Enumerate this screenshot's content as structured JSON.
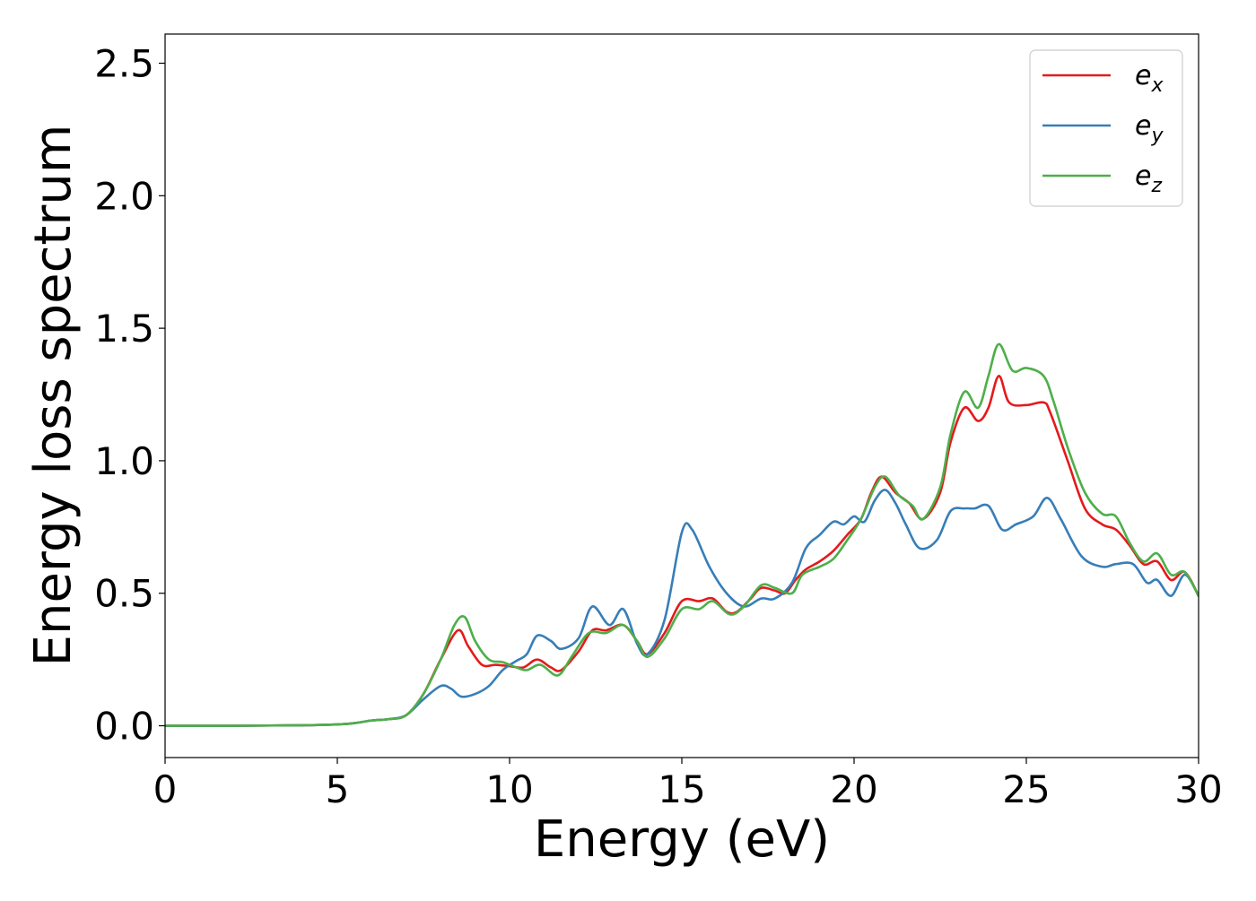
{
  "chart_data": {
    "type": "line",
    "title": "",
    "xlabel": "Energy (eV)",
    "ylabel": "Energy loss spectrum",
    "xlim": [
      0,
      30
    ],
    "ylim": [
      -0.12,
      2.61
    ],
    "xticks": [
      0,
      5,
      10,
      15,
      20,
      25,
      30
    ],
    "xtick_labels": [
      "0",
      "5",
      "10",
      "15",
      "20",
      "25",
      "30"
    ],
    "yticks": [
      0.0,
      0.5,
      1.0,
      1.5,
      2.0,
      2.5
    ],
    "ytick_labels": [
      "0.0",
      "0.5",
      "1.0",
      "1.5",
      "2.0",
      "2.5"
    ],
    "grid": false,
    "legend_position": "top-right",
    "series": [
      {
        "name": "e_x",
        "legend_base": "e",
        "legend_sub": "x",
        "color": "#e41a1c",
        "points": [
          [
            0,
            0
          ],
          [
            2,
            0
          ],
          [
            4,
            0.002
          ],
          [
            5,
            0.005
          ],
          [
            5.5,
            0.01
          ],
          [
            6,
            0.02
          ],
          [
            6.5,
            0.025
          ],
          [
            7,
            0.04
          ],
          [
            7.5,
            0.12
          ],
          [
            8,
            0.25
          ],
          [
            8.5,
            0.36
          ],
          [
            8.8,
            0.3
          ],
          [
            9.2,
            0.23
          ],
          [
            9.6,
            0.23
          ],
          [
            10,
            0.225
          ],
          [
            10.4,
            0.22
          ],
          [
            10.8,
            0.25
          ],
          [
            11.2,
            0.22
          ],
          [
            11.5,
            0.21
          ],
          [
            12,
            0.28
          ],
          [
            12.4,
            0.36
          ],
          [
            12.8,
            0.36
          ],
          [
            13.3,
            0.38
          ],
          [
            13.7,
            0.32
          ],
          [
            14,
            0.27
          ],
          [
            14.5,
            0.35
          ],
          [
            15,
            0.47
          ],
          [
            15.5,
            0.47
          ],
          [
            15.9,
            0.48
          ],
          [
            16.3,
            0.43
          ],
          [
            16.6,
            0.43
          ],
          [
            17,
            0.48
          ],
          [
            17.3,
            0.52
          ],
          [
            17.7,
            0.51
          ],
          [
            18,
            0.5
          ],
          [
            18.3,
            0.55
          ],
          [
            18.6,
            0.59
          ],
          [
            19,
            0.62
          ],
          [
            19.4,
            0.66
          ],
          [
            19.8,
            0.72
          ],
          [
            20.2,
            0.78
          ],
          [
            20.5,
            0.88
          ],
          [
            20.8,
            0.94
          ],
          [
            21.2,
            0.88
          ],
          [
            21.6,
            0.84
          ],
          [
            22,
            0.78
          ],
          [
            22.5,
            0.88
          ],
          [
            22.8,
            1.07
          ],
          [
            23.2,
            1.2
          ],
          [
            23.6,
            1.15
          ],
          [
            23.9,
            1.2
          ],
          [
            24.2,
            1.32
          ],
          [
            24.5,
            1.22
          ],
          [
            25,
            1.21
          ],
          [
            25.5,
            1.22
          ],
          [
            25.7,
            1.18
          ],
          [
            26.2,
            1.0
          ],
          [
            26.7,
            0.82
          ],
          [
            27.2,
            0.76
          ],
          [
            27.6,
            0.74
          ],
          [
            28,
            0.68
          ],
          [
            28.4,
            0.61
          ],
          [
            28.8,
            0.62
          ],
          [
            29.2,
            0.55
          ],
          [
            29.6,
            0.58
          ],
          [
            30,
            0.49
          ]
        ]
      },
      {
        "name": "e_y",
        "legend_base": "e",
        "legend_sub": "y",
        "color": "#377eb8",
        "points": [
          [
            0,
            0
          ],
          [
            2,
            0
          ],
          [
            4,
            0.002
          ],
          [
            5,
            0.005
          ],
          [
            5.5,
            0.01
          ],
          [
            6,
            0.02
          ],
          [
            6.5,
            0.025
          ],
          [
            7,
            0.04
          ],
          [
            7.5,
            0.1
          ],
          [
            8,
            0.15
          ],
          [
            8.3,
            0.14
          ],
          [
            8.6,
            0.11
          ],
          [
            9,
            0.12
          ],
          [
            9.4,
            0.15
          ],
          [
            9.8,
            0.21
          ],
          [
            10.2,
            0.245
          ],
          [
            10.5,
            0.27
          ],
          [
            10.8,
            0.34
          ],
          [
            11.2,
            0.32
          ],
          [
            11.5,
            0.29
          ],
          [
            12,
            0.33
          ],
          [
            12.4,
            0.45
          ],
          [
            12.9,
            0.38
          ],
          [
            13.3,
            0.44
          ],
          [
            13.7,
            0.31
          ],
          [
            14,
            0.27
          ],
          [
            14.5,
            0.4
          ],
          [
            15,
            0.73
          ],
          [
            15.3,
            0.74
          ],
          [
            15.8,
            0.6
          ],
          [
            16.3,
            0.5
          ],
          [
            16.8,
            0.45
          ],
          [
            17.3,
            0.48
          ],
          [
            17.7,
            0.48
          ],
          [
            18.2,
            0.54
          ],
          [
            18.6,
            0.67
          ],
          [
            19,
            0.72
          ],
          [
            19.4,
            0.77
          ],
          [
            19.7,
            0.76
          ],
          [
            20,
            0.79
          ],
          [
            20.3,
            0.77
          ],
          [
            20.6,
            0.85
          ],
          [
            20.9,
            0.89
          ],
          [
            21.2,
            0.84
          ],
          [
            21.5,
            0.76
          ],
          [
            21.9,
            0.67
          ],
          [
            22.4,
            0.7
          ],
          [
            22.8,
            0.81
          ],
          [
            23.2,
            0.82
          ],
          [
            23.5,
            0.82
          ],
          [
            23.9,
            0.83
          ],
          [
            24.3,
            0.74
          ],
          [
            24.7,
            0.76
          ],
          [
            25.2,
            0.79
          ],
          [
            25.6,
            0.86
          ],
          [
            26,
            0.78
          ],
          [
            26.6,
            0.64
          ],
          [
            27.2,
            0.6
          ],
          [
            27.6,
            0.61
          ],
          [
            28.1,
            0.61
          ],
          [
            28.5,
            0.54
          ],
          [
            28.8,
            0.55
          ],
          [
            29.2,
            0.49
          ],
          [
            29.6,
            0.57
          ],
          [
            30,
            0.49
          ]
        ]
      },
      {
        "name": "e_z",
        "legend_base": "e",
        "legend_sub": "z",
        "color": "#4daf4a",
        "points": [
          [
            0,
            0
          ],
          [
            2,
            0
          ],
          [
            4,
            0.002
          ],
          [
            5,
            0.005
          ],
          [
            5.5,
            0.01
          ],
          [
            6,
            0.02
          ],
          [
            6.5,
            0.025
          ],
          [
            7,
            0.04
          ],
          [
            7.5,
            0.12
          ],
          [
            8,
            0.25
          ],
          [
            8.4,
            0.38
          ],
          [
            8.7,
            0.41
          ],
          [
            9,
            0.32
          ],
          [
            9.4,
            0.25
          ],
          [
            9.8,
            0.24
          ],
          [
            10.2,
            0.22
          ],
          [
            10.5,
            0.21
          ],
          [
            10.9,
            0.23
          ],
          [
            11.4,
            0.19
          ],
          [
            11.8,
            0.26
          ],
          [
            12.3,
            0.35
          ],
          [
            12.8,
            0.35
          ],
          [
            13.3,
            0.38
          ],
          [
            13.7,
            0.32
          ],
          [
            14,
            0.26
          ],
          [
            14.5,
            0.33
          ],
          [
            15,
            0.44
          ],
          [
            15.5,
            0.44
          ],
          [
            15.9,
            0.47
          ],
          [
            16.4,
            0.42
          ],
          [
            16.8,
            0.45
          ],
          [
            17.3,
            0.53
          ],
          [
            17.7,
            0.52
          ],
          [
            18.2,
            0.5
          ],
          [
            18.5,
            0.57
          ],
          [
            19,
            0.6
          ],
          [
            19.4,
            0.63
          ],
          [
            19.8,
            0.7
          ],
          [
            20.2,
            0.78
          ],
          [
            20.6,
            0.9
          ],
          [
            20.9,
            0.94
          ],
          [
            21.3,
            0.87
          ],
          [
            21.7,
            0.83
          ],
          [
            22,
            0.78
          ],
          [
            22.5,
            0.9
          ],
          [
            22.8,
            1.1
          ],
          [
            23.2,
            1.26
          ],
          [
            23.6,
            1.2
          ],
          [
            23.9,
            1.32
          ],
          [
            24.2,
            1.44
          ],
          [
            24.6,
            1.34
          ],
          [
            25,
            1.35
          ],
          [
            25.5,
            1.32
          ],
          [
            25.8,
            1.22
          ],
          [
            26.2,
            1.05
          ],
          [
            26.7,
            0.88
          ],
          [
            27.2,
            0.8
          ],
          [
            27.6,
            0.79
          ],
          [
            28,
            0.69
          ],
          [
            28.4,
            0.62
          ],
          [
            28.8,
            0.65
          ],
          [
            29.2,
            0.57
          ],
          [
            29.6,
            0.58
          ],
          [
            30,
            0.49
          ]
        ]
      }
    ]
  }
}
